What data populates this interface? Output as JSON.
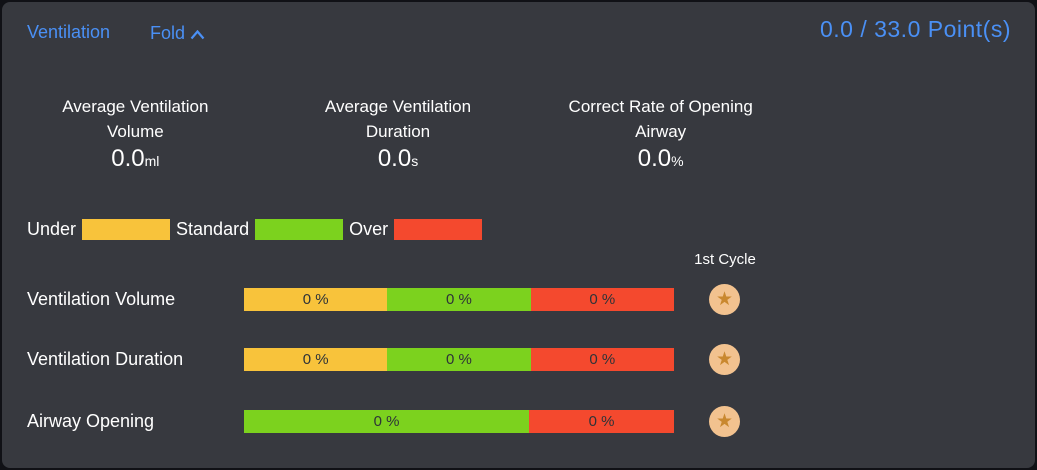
{
  "header": {
    "title": "Ventilation",
    "fold_label": "Fold",
    "fold_icon": "chevron-up-icon",
    "points_text": "0.0 / 33.0 Point(s)",
    "points_earned": "0.0",
    "points_total": "33.0"
  },
  "stats": [
    {
      "line1": "Average Ventilation",
      "line2": "Volume",
      "value": "0.0",
      "unit": "ml"
    },
    {
      "line1": "Average Ventilation",
      "line2": "Duration",
      "value": "0.0",
      "unit": "s"
    },
    {
      "line1": "Correct Rate of Opening",
      "line2": "Airway",
      "value": "0.0",
      "unit": "%"
    }
  ],
  "legend": [
    {
      "label": "Under",
      "color": "#f8c33b"
    },
    {
      "label": "Standard",
      "color": "#7cd21e"
    },
    {
      "label": "Over",
      "color": "#f4492e"
    }
  ],
  "cycle_header": "1st Cycle",
  "rows": [
    {
      "label": "Ventilation Volume",
      "segments": [
        {
          "status": "under",
          "value": "0 %",
          "width_pct": 33.33
        },
        {
          "status": "standard",
          "value": "0 %",
          "width_pct": 33.33
        },
        {
          "status": "over",
          "value": "0 %",
          "width_pct": 33.34
        }
      ],
      "cycle_icon": "star-icon"
    },
    {
      "label": "Ventilation Duration",
      "segments": [
        {
          "status": "under",
          "value": "0 %",
          "width_pct": 33.33
        },
        {
          "status": "standard",
          "value": "0 %",
          "width_pct": 33.33
        },
        {
          "status": "over",
          "value": "0 %",
          "width_pct": 33.34
        }
      ],
      "cycle_icon": "star-icon"
    },
    {
      "label": "Airway Opening",
      "segments": [
        {
          "status": "standard",
          "value": "0 %",
          "width_pct": 66.3
        },
        {
          "status": "over",
          "value": "0 %",
          "width_pct": 33.7
        }
      ],
      "cycle_icon": "star-icon"
    }
  ],
  "colors": {
    "panel_bg": "#37393f",
    "accent_blue": "#4a90f5",
    "under": "#f8c33b",
    "standard": "#7cd21e",
    "over": "#f4492e",
    "star_badge_bg": "#f2c28f",
    "star_glyph": "#c9882f"
  },
  "star_glyph_char": "★"
}
